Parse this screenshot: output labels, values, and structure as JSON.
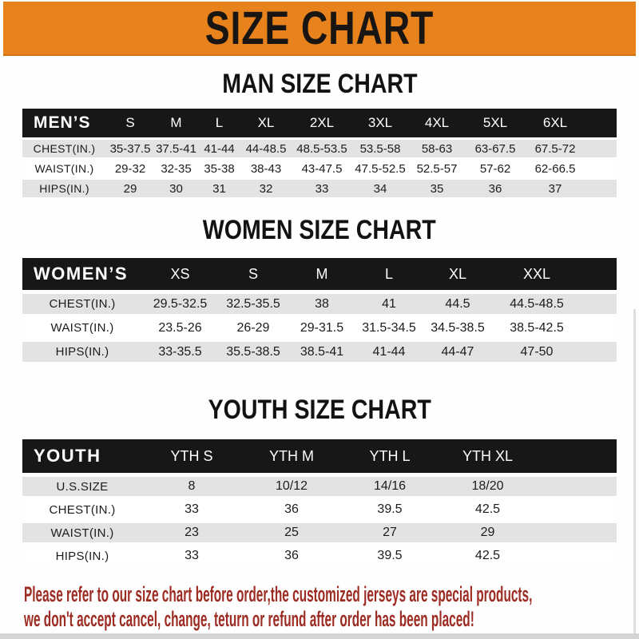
{
  "banner": {
    "title": "SIZE CHART"
  },
  "colors": {
    "banner_orange": "#E8821C",
    "header_bar_black": "#171717",
    "shaded_row_gray": "#E3E3E3",
    "disclaimer_red": "#9C2B22"
  },
  "sections": [
    {
      "id": "men",
      "heading": "MAN SIZE CHART",
      "table": {
        "header": [
          "MEN’S",
          "S",
          "M",
          "L",
          "XL",
          "2XL",
          "3XL",
          "4XL",
          "5XL",
          "6XL"
        ],
        "rows": [
          [
            "CHEST(IN.)",
            "35-37.5",
            "37.5-41",
            "41-44",
            "44-48.5",
            "48.5-53.5",
            "53.5-58",
            "58-63",
            "63-67.5",
            "67.5-72"
          ],
          [
            "WAIST(IN.)",
            "29-32",
            "32-35",
            "35-38",
            "38-43",
            "43-47.5",
            "47.5-52.5",
            "52.5-57",
            "57-62",
            "62-66.5"
          ],
          [
            "HIPS(IN.)",
            "29",
            "30",
            "31",
            "32",
            "33",
            "34",
            "35",
            "36",
            "37"
          ]
        ]
      }
    },
    {
      "id": "women",
      "heading": "WOMEN SIZE CHART",
      "table": {
        "header": [
          "WOMEN’S",
          "XS",
          "S",
          "M",
          "L",
          "XL",
          "XXL"
        ],
        "rows": [
          [
            "CHEST(IN.)",
            "29.5-32.5",
            "32.5-35.5",
            "38",
            "41",
            "44.5",
            "44.5-48.5"
          ],
          [
            "WAIST(IN.)",
            "23.5-26",
            "26-29",
            "29-31.5",
            "31.5-34.5",
            "34.5-38.5",
            "38.5-42.5"
          ],
          [
            "HIPS(IN.)",
            "33-35.5",
            "35.5-38.5",
            "38.5-41",
            "41-44",
            "44-47",
            "47-50"
          ]
        ]
      }
    },
    {
      "id": "youth",
      "heading": "YOUTH SIZE CHART",
      "table": {
        "header": [
          "YOUTH",
          "YTH S",
          "YTH M",
          "YTH L",
          "YTH XL"
        ],
        "rows": [
          [
            "U.S.SIZE",
            "8",
            "10/12",
            "14/16",
            "18/20"
          ],
          [
            "CHEST(IN.)",
            "33",
            "36",
            "39.5",
            "42.5"
          ],
          [
            "WAIST(IN.)",
            "23",
            "25",
            "27",
            "29"
          ],
          [
            "HIPS(IN.)",
            "33",
            "36",
            "39.5",
            "42.5"
          ]
        ]
      }
    }
  ],
  "footer": {
    "lines": [
      "Please refer to our size chart before order,the customized jerseys are special products,",
      "we don't accept cancel, change, teturn or refund after order has been placed!"
    ]
  }
}
